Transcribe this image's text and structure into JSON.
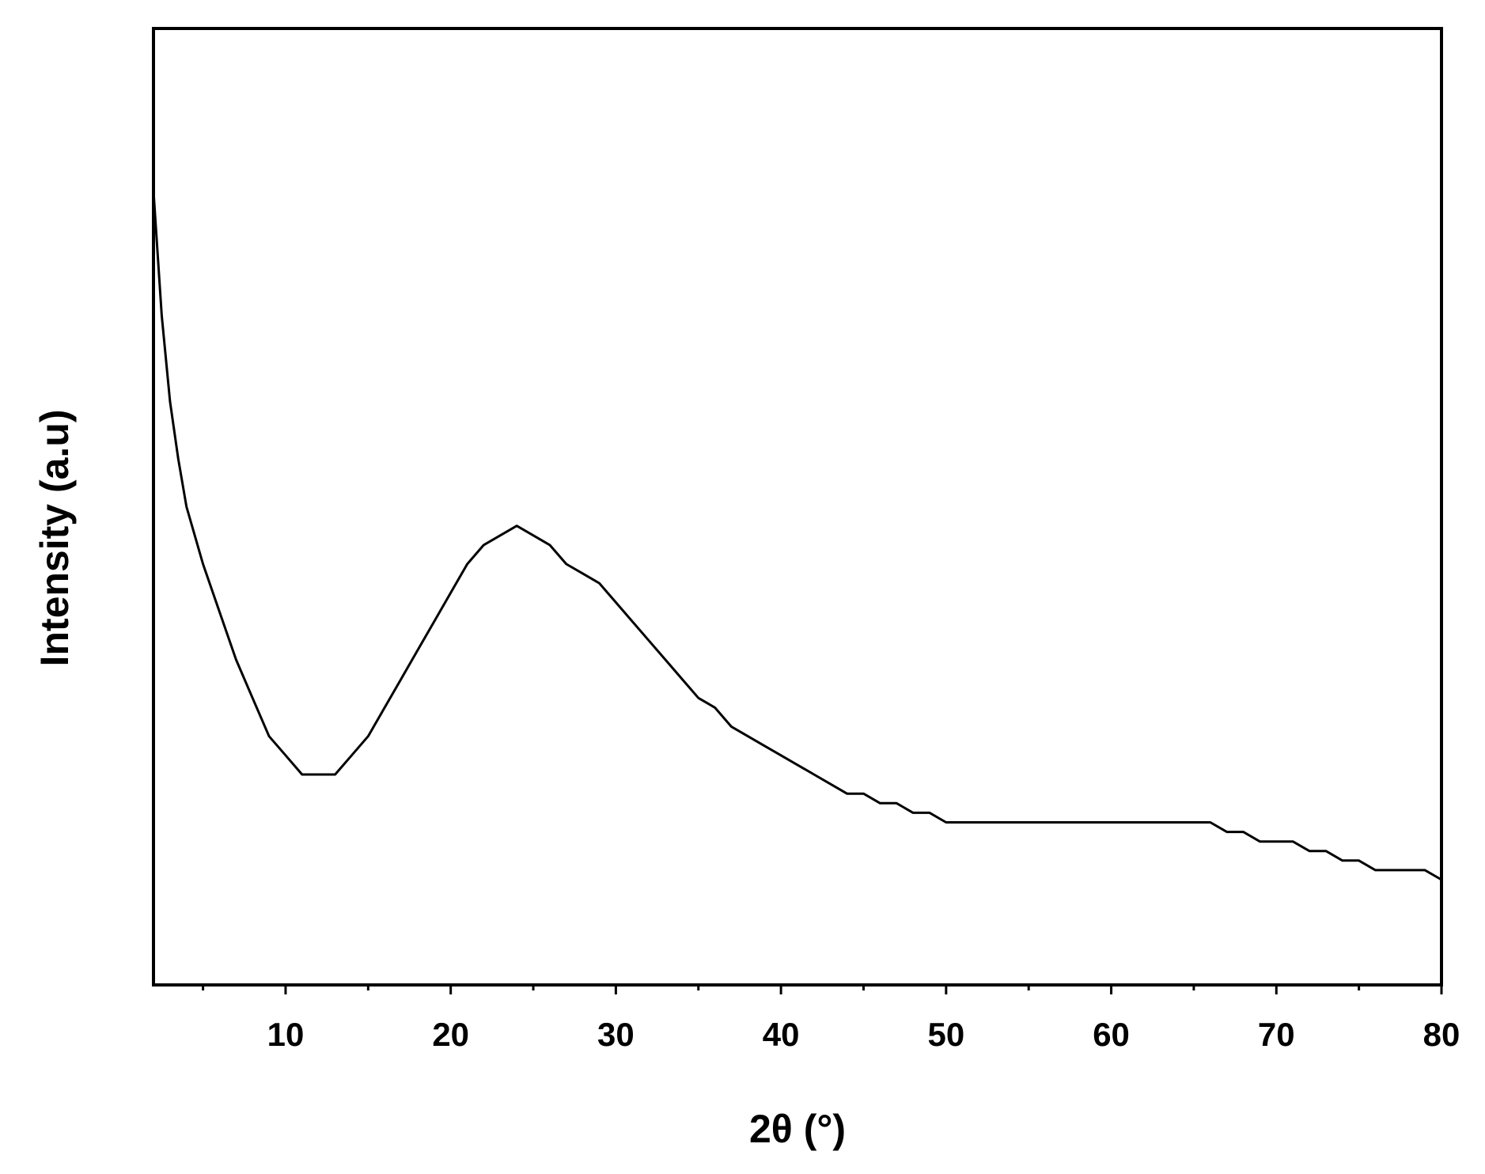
{
  "chart_data": {
    "type": "line",
    "x_label": "2θ (°)",
    "y_label": "Intensity (a.u)",
    "x": [
      2,
      2.5,
      3,
      3.5,
      4,
      5,
      6,
      7,
      8,
      9,
      10,
      11,
      12,
      13,
      14,
      15,
      16,
      17,
      18,
      19,
      20,
      21,
      22,
      23,
      24,
      25,
      26,
      27,
      28,
      29,
      30,
      31,
      32,
      33,
      34,
      35,
      36,
      37,
      38,
      39,
      40,
      41,
      42,
      43,
      44,
      45,
      46,
      47,
      48,
      49,
      50,
      51,
      52,
      53,
      54,
      55,
      56,
      57,
      58,
      59,
      60,
      61,
      62,
      63,
      64,
      65,
      66,
      67,
      68,
      69,
      70,
      71,
      72,
      73,
      74,
      75,
      76,
      77,
      78,
      79,
      80
    ],
    "series": [
      {
        "color": "#000000",
        "values": [
          83,
          70,
          61,
          55,
          50,
          44,
          39,
          34,
          30,
          26,
          24,
          22,
          22,
          22,
          24,
          26,
          29,
          32,
          35,
          38,
          41,
          44,
          46,
          47,
          48,
          47,
          46,
          44,
          43,
          42,
          40,
          38,
          36,
          34,
          32,
          30,
          29,
          27,
          26,
          25,
          24,
          23,
          22,
          21,
          20,
          20,
          19,
          19,
          18,
          18,
          17,
          17,
          17,
          17,
          17,
          17,
          17,
          17,
          17,
          17,
          17,
          17,
          17,
          17,
          17,
          17,
          17,
          16,
          16,
          15,
          15,
          15,
          14,
          14,
          13,
          13,
          12,
          12,
          12,
          12,
          11
        ]
      }
    ],
    "xlim": [
      2,
      80
    ],
    "ylim": [
      0,
      100
    ],
    "xticks": [
      10,
      20,
      30,
      40,
      50,
      60,
      70,
      80
    ],
    "xminor_ticks": [
      5,
      15,
      25,
      35,
      45,
      55,
      65,
      75
    ],
    "grid": false
  }
}
